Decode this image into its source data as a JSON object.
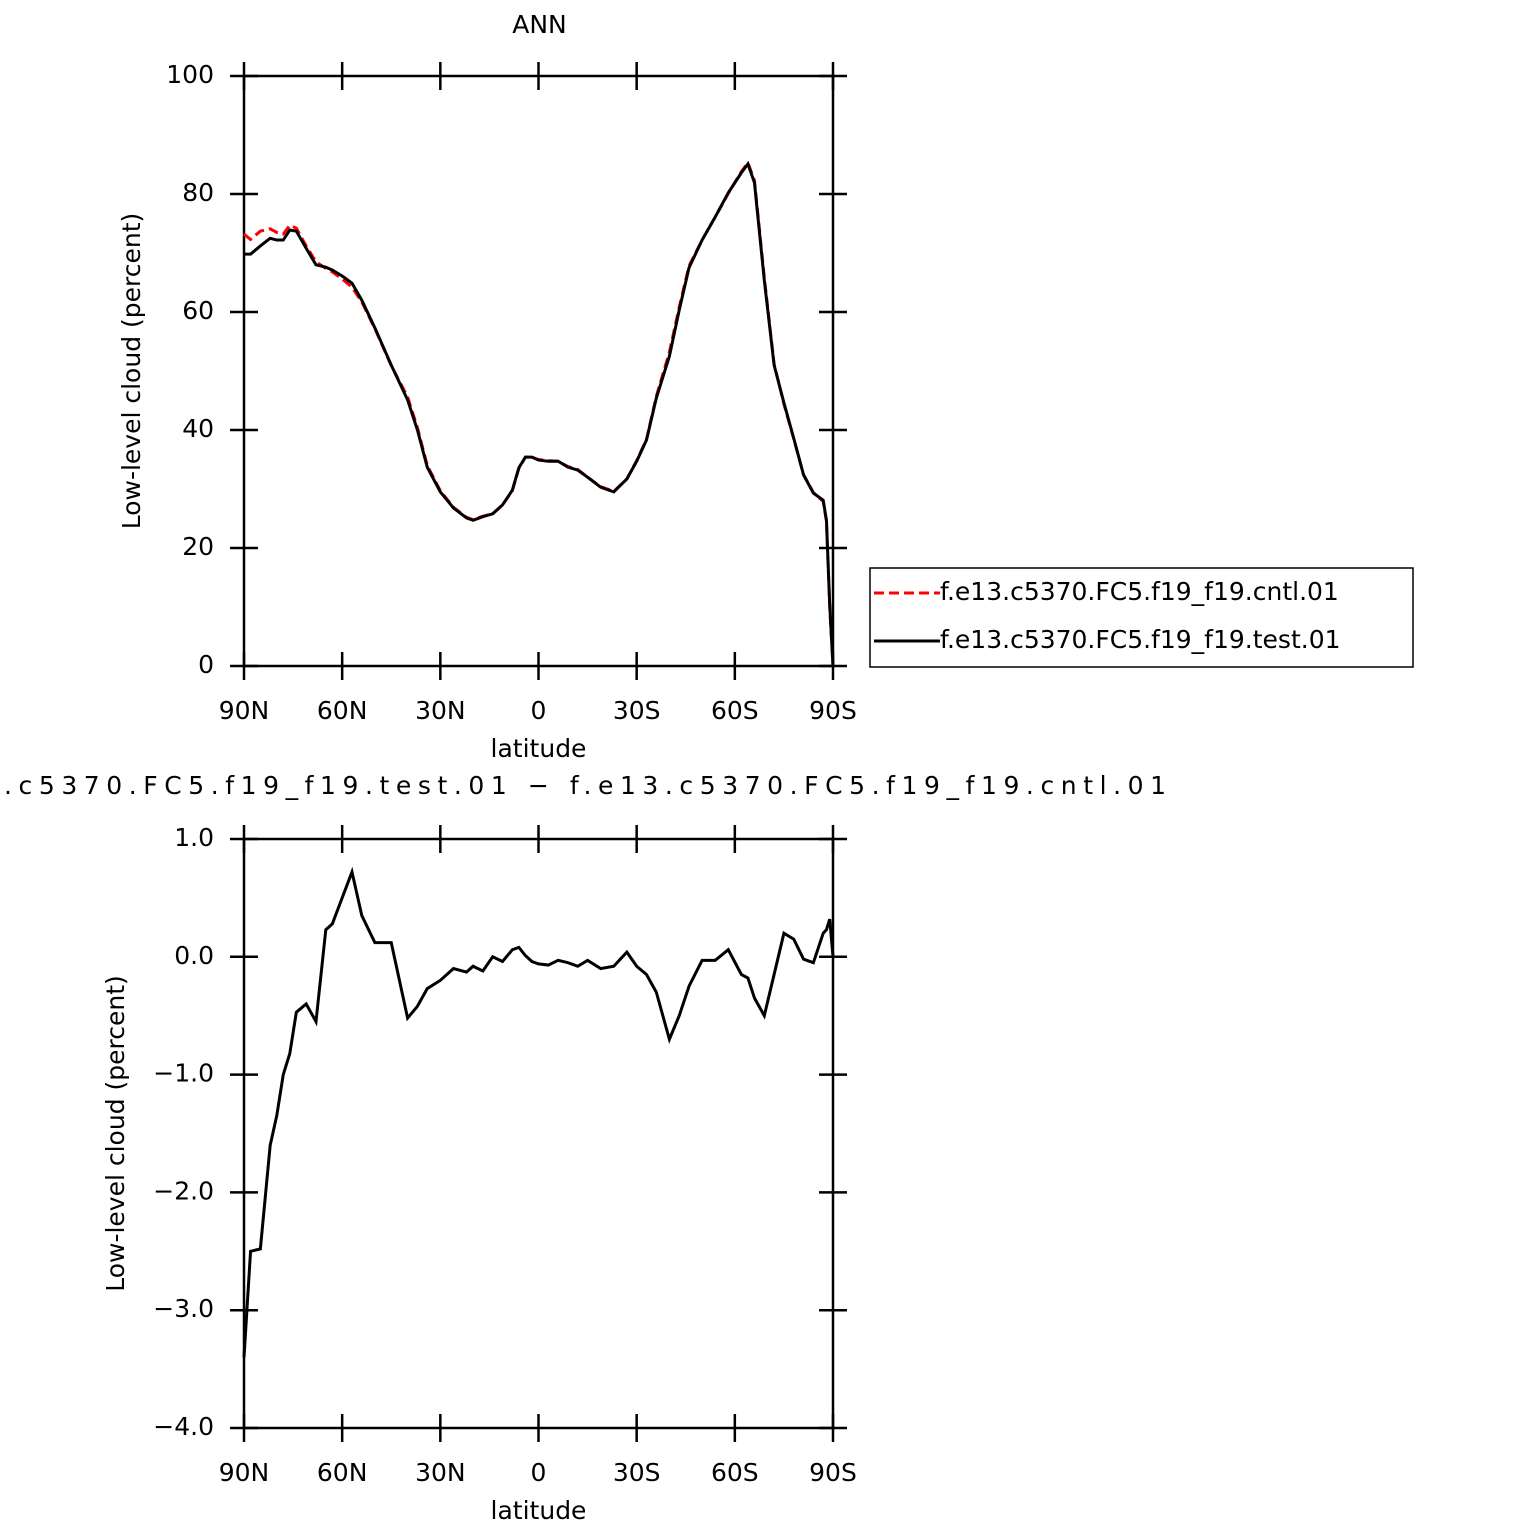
{
  "chart_data": [
    {
      "type": "line",
      "title": "ANN",
      "x_label": "latitude",
      "y_label": "Low-level cloud (percent)",
      "x": [
        90,
        88,
        85,
        82,
        80,
        78,
        76,
        74,
        71,
        68,
        65,
        63,
        60,
        57,
        54,
        50,
        45,
        40,
        37,
        34,
        30,
        26,
        22,
        20,
        17,
        14,
        11,
        8,
        6,
        4,
        2,
        0,
        -3,
        -6,
        -9,
        -12,
        -15,
        -19,
        -23,
        -27,
        -30,
        -33,
        -36,
        -40,
        -43,
        -46,
        -50,
        -54,
        -58,
        -62,
        -64,
        -66,
        -69,
        -72,
        -75,
        -78,
        -81,
        -84,
        -87,
        -88,
        -89,
        -90
      ],
      "xlim": [
        90,
        -90
      ],
      "xticks": [
        {
          "value": 90,
          "label": "90N"
        },
        {
          "value": 60,
          "label": "60N"
        },
        {
          "value": 30,
          "label": "30N"
        },
        0,
        {
          "value": -30,
          "label": "30S"
        },
        {
          "value": -60,
          "label": "60S"
        },
        {
          "value": -90,
          "label": "90S"
        }
      ],
      "ylim": [
        0,
        100
      ],
      "yticks": [
        0,
        20,
        40,
        60,
        80,
        100
      ],
      "legend": "outside-right",
      "series": [
        {
          "name": "f.e13.c5370.FC5.f19_f19.cntl.01",
          "color": "#ff0000",
          "line_style": "dashed",
          "values": [
            73.2,
            72.3,
            73.7,
            74.1,
            73.5,
            73.2,
            74.7,
            74.2,
            71.2,
            68.5,
            67.4,
            66.8,
            65.6,
            64.2,
            61.7,
            57.2,
            50.9,
            45.6,
            40.4,
            34.0,
            29.7,
            26.9,
            25.2,
            24.8,
            25.4,
            25.8,
            27.3,
            29.7,
            33.5,
            35.4,
            35.4,
            35.0,
            34.8,
            34.7,
            33.8,
            33.3,
            32.0,
            30.4,
            29.6,
            31.7,
            34.8,
            38.4,
            45.7,
            53.2,
            60.8,
            67.8,
            72.2,
            76.1,
            80.1,
            83.8,
            85.3,
            82.3,
            65.9,
            51.2,
            44.4,
            38.5,
            32.4,
            29.4,
            27.9,
            24.5,
            10.0,
            0
          ]
        },
        {
          "name": "f.e13.c5370.FC5.f19_f19.test.01",
          "color": "#000000",
          "line_style": "solid",
          "values": [
            69.8,
            69.8,
            71.2,
            72.5,
            72.2,
            72.2,
            73.9,
            73.7,
            70.8,
            68.0,
            67.6,
            67.1,
            66.1,
            64.9,
            62.0,
            57.3,
            51.0,
            45.1,
            40.0,
            33.7,
            29.5,
            26.8,
            25.1,
            24.7,
            25.3,
            25.8,
            27.3,
            29.8,
            33.6,
            35.4,
            35.4,
            34.9,
            34.7,
            34.7,
            33.7,
            33.2,
            32.0,
            30.3,
            29.5,
            31.7,
            34.7,
            38.3,
            45.4,
            52.5,
            60.3,
            67.5,
            72.2,
            76.1,
            80.2,
            83.6,
            85.1,
            81.9,
            65.4,
            51.0,
            44.6,
            38.6,
            32.4,
            29.3,
            28.1,
            24.7,
            10.3,
            0
          ]
        }
      ]
    },
    {
      "type": "line",
      "title": ".c5370.FC5.f19_f19.test.01 − f.e13.c5370.FC5.f19_f19.cntl.01",
      "x_label": "latitude",
      "y_label": "Low-level cloud (percent)",
      "x": [
        90,
        88,
        85,
        82,
        80,
        78,
        76,
        74,
        71,
        68,
        65,
        63,
        60,
        57,
        54,
        50,
        45,
        40,
        37,
        34,
        30,
        26,
        22,
        20,
        17,
        14,
        11,
        8,
        6,
        4,
        2,
        0,
        -3,
        -6,
        -9,
        -12,
        -15,
        -19,
        -23,
        -27,
        -30,
        -33,
        -36,
        -40,
        -43,
        -46,
        -50,
        -54,
        -58,
        -62,
        -64,
        -66,
        -69,
        -72,
        -75,
        -78,
        -81,
        -84,
        -87,
        -88,
        -89,
        -90
      ],
      "xlim": [
        90,
        -90
      ],
      "xticks": [
        {
          "value": 90,
          "label": "90N"
        },
        {
          "value": 60,
          "label": "60N"
        },
        {
          "value": 30,
          "label": "30N"
        },
        0,
        {
          "value": -30,
          "label": "30S"
        },
        {
          "value": -60,
          "label": "60S"
        },
        {
          "value": -90,
          "label": "90S"
        }
      ],
      "ylim": [
        -4,
        1
      ],
      "yticks": [
        {
          "value": -4,
          "label": "−4.0"
        },
        {
          "value": -3,
          "label": "−3.0"
        },
        {
          "value": -2,
          "label": "−2.0"
        },
        {
          "value": -1,
          "label": "−1.0"
        },
        {
          "value": 0,
          "label": "0.0"
        },
        {
          "value": 1,
          "label": "1.0"
        }
      ],
      "series": [
        {
          "color": "#000000",
          "line_style": "solid",
          "values": [
            -3.4,
            -2.5,
            -2.48,
            -1.6,
            -1.35,
            -1.0,
            -0.82,
            -0.47,
            -0.4,
            -0.55,
            0.23,
            0.28,
            0.5,
            0.72,
            0.35,
            0.12,
            0.12,
            -0.52,
            -0.42,
            -0.27,
            -0.2,
            -0.1,
            -0.13,
            -0.08,
            -0.12,
            0,
            -0.04,
            0.06,
            0.08,
            0.01,
            -0.04,
            -0.06,
            -0.07,
            -0.03,
            -0.05,
            -0.08,
            -0.03,
            -0.1,
            -0.08,
            0.04,
            -0.08,
            -0.15,
            -0.3,
            -0.7,
            -0.5,
            -0.25,
            -0.03,
            -0.03,
            0.06,
            -0.15,
            -0.18,
            -0.35,
            -0.5,
            -0.15,
            0.2,
            0.15,
            -0.02,
            -0.05,
            0.2,
            0.23,
            0.32,
            0
          ]
        }
      ]
    }
  ]
}
